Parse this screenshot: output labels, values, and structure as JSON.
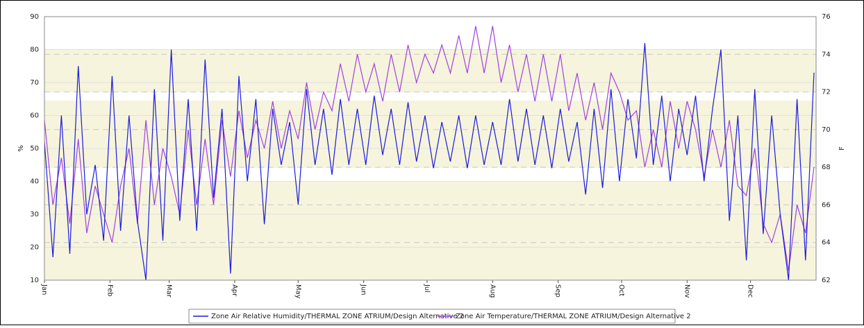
{
  "chart_data": {
    "type": "line",
    "ylabel": "%",
    "y2label": "F",
    "xlim": [
      0,
      365
    ],
    "xticks": [
      {
        "value": 0,
        "label": "Jan"
      },
      {
        "value": 31,
        "label": "Feb"
      },
      {
        "value": 59,
        "label": "Mar"
      },
      {
        "value": 90,
        "label": "Apr"
      },
      {
        "value": 120,
        "label": "May"
      },
      {
        "value": 151,
        "label": "Jun"
      },
      {
        "value": 181,
        "label": "Jul"
      },
      {
        "value": 212,
        "label": "Aug"
      },
      {
        "value": 243,
        "label": "Sep"
      },
      {
        "value": 273,
        "label": "Oct"
      },
      {
        "value": 304,
        "label": "Nov"
      },
      {
        "value": 334,
        "label": "Dec"
      }
    ],
    "ylim": [
      10,
      90
    ],
    "yticks": [
      10,
      20,
      30,
      40,
      50,
      60,
      70,
      80,
      90
    ],
    "y2lim": [
      62,
      76
    ],
    "y2ticks": [
      62,
      64,
      66,
      68,
      70,
      72,
      74,
      76
    ],
    "grid": true,
    "legend": "bottom",
    "x": [
      0,
      4,
      8,
      12,
      16,
      20,
      24,
      28,
      32,
      36,
      40,
      44,
      48,
      52,
      56,
      60,
      64,
      68,
      72,
      76,
      80,
      84,
      88,
      92,
      96,
      100,
      104,
      108,
      112,
      116,
      120,
      124,
      128,
      132,
      136,
      140,
      144,
      148,
      152,
      156,
      160,
      164,
      168,
      172,
      176,
      180,
      184,
      188,
      192,
      196,
      200,
      204,
      208,
      212,
      216,
      220,
      224,
      228,
      232,
      236,
      240,
      244,
      248,
      252,
      256,
      260,
      264,
      268,
      272,
      276,
      280,
      284,
      288,
      292,
      296,
      300,
      304,
      308,
      312,
      316,
      320,
      324,
      328,
      332,
      336,
      340,
      344,
      348,
      352,
      356,
      360,
      364
    ],
    "series": [
      {
        "name": "Zone Air Relative Humidity/THERMAL ZONE ATRIUM/Design Alternative 2",
        "color": "#1a1adc",
        "values": [
          52,
          17,
          60,
          18,
          75,
          30,
          45,
          22,
          72,
          25,
          60,
          28,
          10,
          68,
          22,
          80,
          28,
          65,
          25,
          77,
          35,
          62,
          12,
          72,
          40,
          65,
          27,
          62,
          45,
          58,
          33,
          68,
          45,
          62,
          42,
          65,
          45,
          62,
          45,
          66,
          48,
          62,
          45,
          64,
          46,
          60,
          44,
          58,
          46,
          60,
          44,
          60,
          45,
          58,
          45,
          65,
          46,
          62,
          45,
          60,
          44,
          62,
          46,
          58,
          36,
          62,
          38,
          68,
          40,
          65,
          47,
          82,
          45,
          66,
          40,
          62,
          48,
          66,
          40,
          62,
          80,
          28,
          60,
          16,
          68,
          24,
          60,
          30,
          10,
          65,
          16,
          73
        ]
      },
      {
        "name": "Zone Air Temperature/THERMAL ZONE ATRIUM/Design Alternative 2",
        "color": "#a040e0",
        "axis": "y2",
        "values": [
          70.5,
          66,
          68.5,
          65,
          69.5,
          64.5,
          67,
          65.5,
          64,
          67,
          69,
          65,
          70.5,
          66,
          69,
          67.5,
          65.5,
          70,
          66,
          69.5,
          66,
          70.5,
          67.5,
          71,
          68.5,
          70.5,
          69,
          71.5,
          69,
          71,
          69.5,
          72.5,
          70,
          72,
          71,
          73.5,
          71.5,
          74,
          72,
          73.5,
          71.5,
          74,
          72,
          74.5,
          72.5,
          74,
          73,
          74.5,
          73,
          75,
          73,
          75.5,
          73,
          75.5,
          72.5,
          74.5,
          72,
          74,
          71.5,
          74,
          71.5,
          74,
          71,
          73,
          70.5,
          72.5,
          70,
          73,
          72,
          70.5,
          71,
          68,
          70,
          68,
          71.5,
          69,
          71.5,
          70,
          67.5,
          70,
          68,
          70.5,
          67,
          66.5,
          69,
          65,
          64,
          65.5,
          62.5,
          66,
          64.5,
          68
        ]
      }
    ]
  }
}
